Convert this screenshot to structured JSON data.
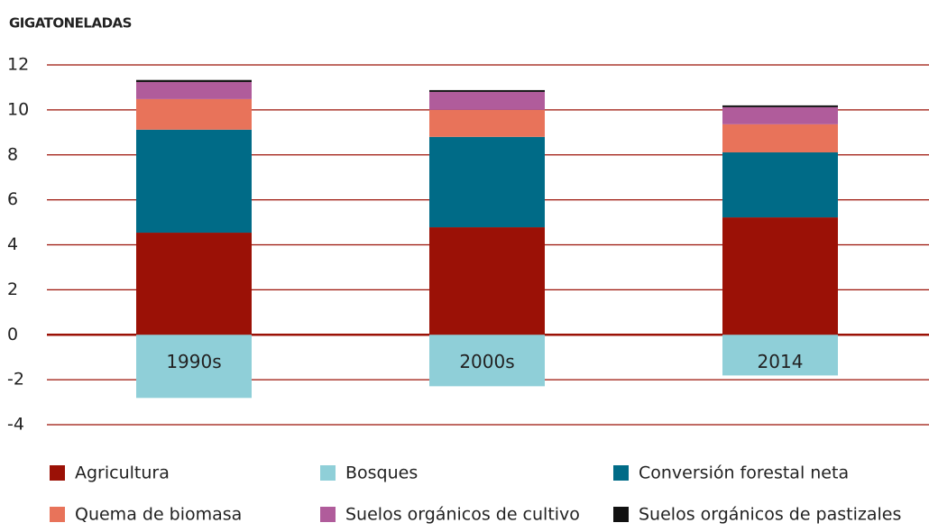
{
  "chart_data": {
    "type": "stacked_bar",
    "title": "GIGATONELADAS",
    "categories": [
      "1990s",
      "2000s",
      "2014"
    ],
    "series": [
      {
        "name": "Agricultura",
        "color": "#9b1106",
        "values": [
          4.54,
          4.78,
          5.22
        ]
      },
      {
        "name": "Bosques",
        "color": "#8fcfd8",
        "values": [
          -2.81,
          -2.29,
          -1.81
        ]
      },
      {
        "name": "Conversión forestal neta",
        "color": "#006b87",
        "values": [
          4.58,
          4.02,
          2.89
        ]
      },
      {
        "name": "Quema de biomasa",
        "color": "#e8735a",
        "values": [
          1.36,
          1.2,
          1.25
        ]
      },
      {
        "name": "Suelos orgánicos de cultivo",
        "color": "#b05c9b",
        "values": [
          0.76,
          0.8,
          0.76
        ]
      },
      {
        "name": "Suelos orgánicos de pastizales",
        "color": "#111111",
        "values": [
          0.09,
          0.08,
          0.08
        ]
      }
    ],
    "ylim": [
      -4,
      12
    ],
    "yticks": [
      -4,
      -2,
      0,
      2,
      4,
      6,
      8,
      10,
      12
    ],
    "grid": true,
    "grid_color": "#9b1106"
  }
}
